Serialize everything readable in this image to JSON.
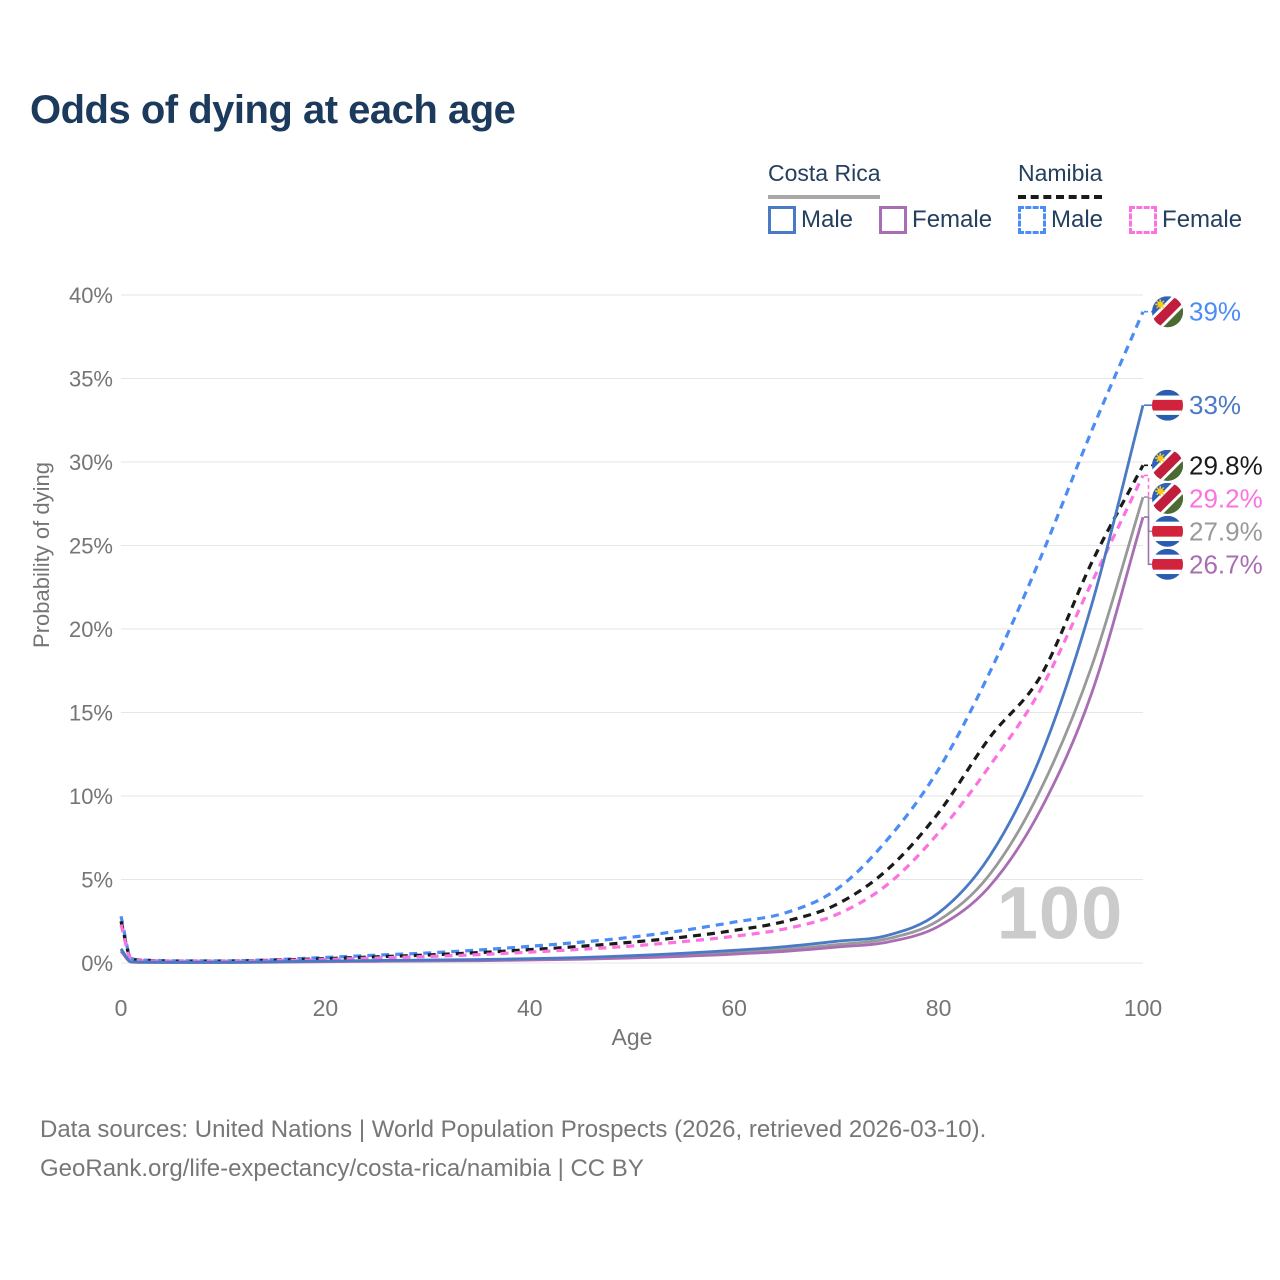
{
  "page": {
    "title": "Odds of dying at each age"
  },
  "legend": {
    "groups": [
      {
        "label": "Costa Rica",
        "line_style": "solid",
        "key_color": "#a8a8a8",
        "items": [
          {
            "label": "Male",
            "color": "#4a7ac4"
          },
          {
            "label": "Female",
            "color": "#a96db4"
          }
        ]
      },
      {
        "label": "Namibia",
        "line_style": "dashed",
        "key_color": "#1a1a1a",
        "items": [
          {
            "label": "Male",
            "color": "#4c8cf5"
          },
          {
            "label": "Female",
            "color": "#fb72e0"
          }
        ]
      }
    ]
  },
  "axes": {
    "y_title": "Probability of dying",
    "x_title": "Age",
    "y_ticks": [
      "0%",
      "5%",
      "10%",
      "15%",
      "20%",
      "25%",
      "30%",
      "35%",
      "40%"
    ],
    "y_tick_values": [
      0,
      5,
      10,
      15,
      20,
      25,
      30,
      35,
      40
    ],
    "x_ticks": [
      0,
      20,
      40,
      60,
      80,
      100
    ]
  },
  "watermark": "100",
  "flags": {
    "namibia": {
      "blue": "#2f62b8",
      "red": "#c01e3c",
      "green": "#4c6b2e",
      "white": "#ffffff",
      "sun": "#f8c81c"
    },
    "costa_rica": {
      "blue": "#2a5db0",
      "red": "#d2233c",
      "white": "#ffffff"
    }
  },
  "chart_data": {
    "type": "line",
    "title": "Odds of dying at each age",
    "xlabel": "Age",
    "ylabel": "Probability of dying",
    "xlim": [
      0,
      100
    ],
    "ylim": [
      0,
      40
    ],
    "grid": "horizontal gridlines every 5%",
    "legend_position": "top-right",
    "x": [
      0,
      1,
      2,
      5,
      10,
      15,
      20,
      25,
      30,
      35,
      40,
      45,
      50,
      55,
      60,
      65,
      70,
      75,
      80,
      85,
      90,
      95,
      100
    ],
    "series": [
      {
        "name": "Namibia Male",
        "country": "Namibia",
        "sex": "Male",
        "color": "#4c8cf5",
        "dash": true,
        "flag": "namibia",
        "end_label": "39%",
        "values": [
          2.8,
          0.28,
          0.18,
          0.13,
          0.13,
          0.2,
          0.33,
          0.47,
          0.6,
          0.78,
          1.0,
          1.25,
          1.55,
          1.95,
          2.45,
          3.0,
          4.4,
          7.4,
          11.6,
          17.4,
          24.3,
          31.9,
          39.0
        ]
      },
      {
        "name": "Namibia Both sexes",
        "country": "Namibia",
        "sex": "Both",
        "color": "#1a1a1a",
        "dash": true,
        "flag": "namibia",
        "end_label": "29.8%",
        "values": [
          2.5,
          0.25,
          0.16,
          0.11,
          0.11,
          0.17,
          0.26,
          0.37,
          0.48,
          0.62,
          0.8,
          1.0,
          1.25,
          1.55,
          1.95,
          2.5,
          3.5,
          5.6,
          9.0,
          13.5,
          17.2,
          24.0,
          29.8
        ]
      },
      {
        "name": "Namibia Female",
        "country": "Namibia",
        "sex": "Female",
        "color": "#fb72e0",
        "dash": true,
        "flag": "namibia",
        "end_label": "29.2%",
        "values": [
          2.3,
          0.22,
          0.14,
          0.1,
          0.1,
          0.14,
          0.21,
          0.3,
          0.39,
          0.5,
          0.65,
          0.82,
          1.02,
          1.28,
          1.6,
          2.05,
          2.9,
          4.7,
          7.8,
          11.8,
          16.4,
          22.8,
          29.2
        ]
      },
      {
        "name": "Costa Rica Both sexes",
        "country": "Costa Rica",
        "sex": "Both",
        "color": "#999999",
        "dash": false,
        "flag": "costa-rica",
        "end_label": "27.9%",
        "values": [
          0.78,
          0.06,
          0.045,
          0.035,
          0.035,
          0.06,
          0.1,
          0.12,
          0.14,
          0.17,
          0.21,
          0.27,
          0.35,
          0.46,
          0.62,
          0.82,
          1.1,
          1.45,
          2.55,
          5.3,
          10.4,
          17.8,
          27.9
        ]
      },
      {
        "name": "Costa Rica Female",
        "country": "Costa Rica",
        "sex": "Female",
        "color": "#a96db4",
        "dash": false,
        "flag": "costa-rica",
        "end_label": "26.7%",
        "values": [
          0.7,
          0.055,
          0.04,
          0.03,
          0.03,
          0.05,
          0.08,
          0.1,
          0.12,
          0.14,
          0.18,
          0.23,
          0.3,
          0.4,
          0.53,
          0.7,
          0.95,
          1.25,
          2.2,
          4.6,
          9.2,
          16.2,
          26.7
        ]
      },
      {
        "name": "Costa Rica Male",
        "country": "Costa Rica",
        "sex": "Male",
        "color": "#4a7ac4",
        "dash": false,
        "flag": "costa-rica",
        "end_label": "33%",
        "values": [
          0.85,
          0.07,
          0.05,
          0.04,
          0.04,
          0.07,
          0.12,
          0.15,
          0.18,
          0.21,
          0.26,
          0.33,
          0.44,
          0.58,
          0.76,
          0.98,
          1.3,
          1.65,
          3.0,
          6.4,
          12.4,
          21.5,
          33.4
        ]
      }
    ]
  },
  "footer": {
    "line1": "Data sources: United Nations | World Population Prospects (2026, retrieved 2026-03-10).",
    "line2": "GeoRank.org/life-expectancy/costa-rica/namibia | CC BY"
  }
}
